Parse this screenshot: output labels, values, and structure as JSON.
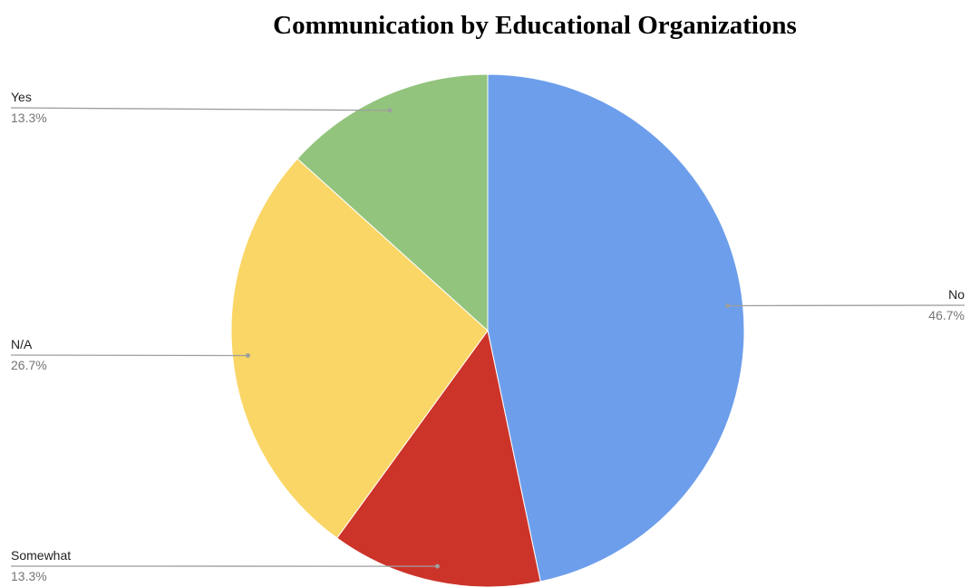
{
  "chart_data": {
    "type": "pie",
    "title": "Communication by Educational Organizations",
    "start_angle_deg": 0,
    "direction": "clockwise",
    "legend": "none",
    "slices": [
      {
        "label": "No",
        "value": 46.7,
        "percent_label": "46.7%",
        "color": "#6d9eeb"
      },
      {
        "label": "Somewhat",
        "value": 13.3,
        "percent_label": "13.3%",
        "color": "#cc342a"
      },
      {
        "label": "N/A",
        "value": 26.7,
        "percent_label": "26.7%",
        "color": "#fad666"
      },
      {
        "label": "Yes",
        "value": 13.3,
        "percent_label": "13.3%",
        "color": "#93c47d"
      }
    ]
  }
}
